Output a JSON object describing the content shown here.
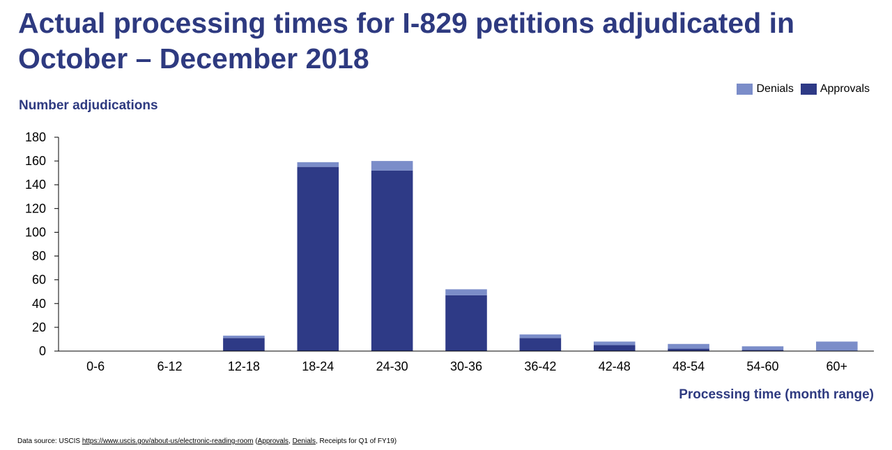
{
  "header": {
    "title": "Actual processing times for I-829 petitions adjudicated in October – December 2018"
  },
  "footer": {
    "source_prefix": "Data source: USCIS ",
    "source_url": "https://www.uscis.gov/about-us/electronic-reading-room",
    "source_open": " (",
    "source_approvals": "Approvals",
    "source_comma": ", ",
    "source_denials": "Denials",
    "source_suffix": ", Receipts for Q1 of FY19)"
  },
  "colors": {
    "approvals": "#2e3a86",
    "denials": "#7b8dc9",
    "title": "#2e3a80",
    "axis": "#000000"
  },
  "chart_data": {
    "type": "bar",
    "stacked": true,
    "title": "Actual processing times for I-829 petitions adjudicated in October – December 2018",
    "xlabel": "Processing time (month range)",
    "ylabel": "Number adjudications",
    "ylim": [
      0,
      180
    ],
    "yticks": [
      0,
      20,
      40,
      60,
      80,
      100,
      120,
      140,
      160,
      180
    ],
    "legend_position": "top-right",
    "categories": [
      "0-6",
      "6-12",
      "12-18",
      "18-24",
      "24-30",
      "30-36",
      "36-42",
      "42-48",
      "48-54",
      "54-60",
      "60+"
    ],
    "series": [
      {
        "name": "Approvals",
        "color": "#2e3a86",
        "values": [
          0,
          0,
          11,
          155,
          152,
          47,
          11,
          5,
          2,
          1,
          0
        ]
      },
      {
        "name": "Denials",
        "color": "#7b8dc9",
        "values": [
          0,
          0,
          2,
          4,
          8,
          5,
          3,
          3,
          4,
          3,
          8
        ]
      }
    ],
    "legend": [
      "Denials",
      "Approvals"
    ]
  }
}
